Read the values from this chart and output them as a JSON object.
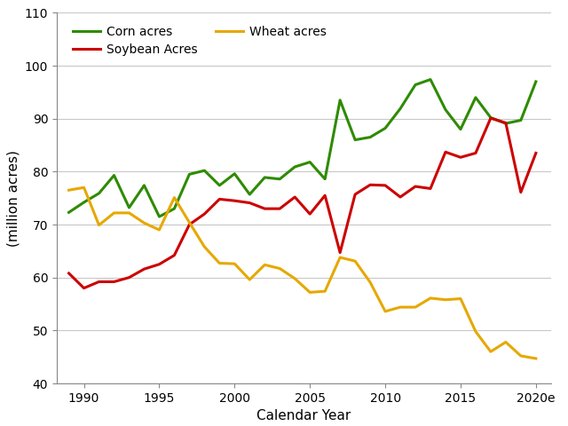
{
  "years": [
    1989,
    1990,
    1991,
    1992,
    1993,
    1994,
    1995,
    1996,
    1997,
    1998,
    1999,
    2000,
    2001,
    2002,
    2003,
    2004,
    2005,
    2006,
    2007,
    2008,
    2009,
    2010,
    2011,
    2012,
    2013,
    2014,
    2015,
    2016,
    2017,
    2018,
    2019,
    2020
  ],
  "corn": [
    72.3,
    74.2,
    75.9,
    79.3,
    73.2,
    77.4,
    71.5,
    73.0,
    79.5,
    80.2,
    77.4,
    79.6,
    75.7,
    78.9,
    78.6,
    80.9,
    81.8,
    78.6,
    93.5,
    86.0,
    86.5,
    88.2,
    91.9,
    96.4,
    97.4,
    91.7,
    88.0,
    94.0,
    90.2,
    89.1,
    89.7,
    97.0
  ],
  "soybean": [
    60.8,
    58.0,
    59.2,
    59.2,
    60.0,
    61.6,
    62.5,
    64.2,
    70.0,
    72.0,
    74.8,
    74.5,
    74.1,
    73.0,
    73.0,
    75.2,
    72.0,
    75.5,
    64.7,
    75.7,
    77.5,
    77.4,
    75.2,
    77.2,
    76.8,
    83.7,
    82.7,
    83.5,
    90.1,
    89.2,
    76.1,
    83.5
  ],
  "wheat": [
    76.5,
    77.0,
    69.9,
    72.2,
    72.2,
    70.3,
    69.0,
    75.1,
    70.4,
    65.8,
    62.7,
    62.6,
    59.6,
    62.4,
    61.7,
    59.8,
    57.2,
    57.4,
    63.8,
    63.1,
    59.1,
    53.6,
    54.4,
    54.4,
    56.1,
    55.8,
    56.0,
    49.8,
    46.0,
    47.8,
    45.2,
    44.7
  ],
  "corn_color": "#2e8b00",
  "soybean_color": "#cc0000",
  "wheat_color": "#e6a800",
  "xlabel": "Calendar Year",
  "ylabel": "(million acres)",
  "ylim": [
    40,
    110
  ],
  "yticks": [
    40,
    50,
    60,
    70,
    80,
    90,
    100,
    110
  ],
  "xlim_left": 1988.2,
  "xlim_right": 2021.0,
  "legend_corn": "Corn acres",
  "legend_soybean": "Soybean Acres",
  "legend_wheat": "Wheat acres",
  "linewidth": 2.2,
  "background_color": "#ffffff",
  "grid_color": "#c8c8c8"
}
